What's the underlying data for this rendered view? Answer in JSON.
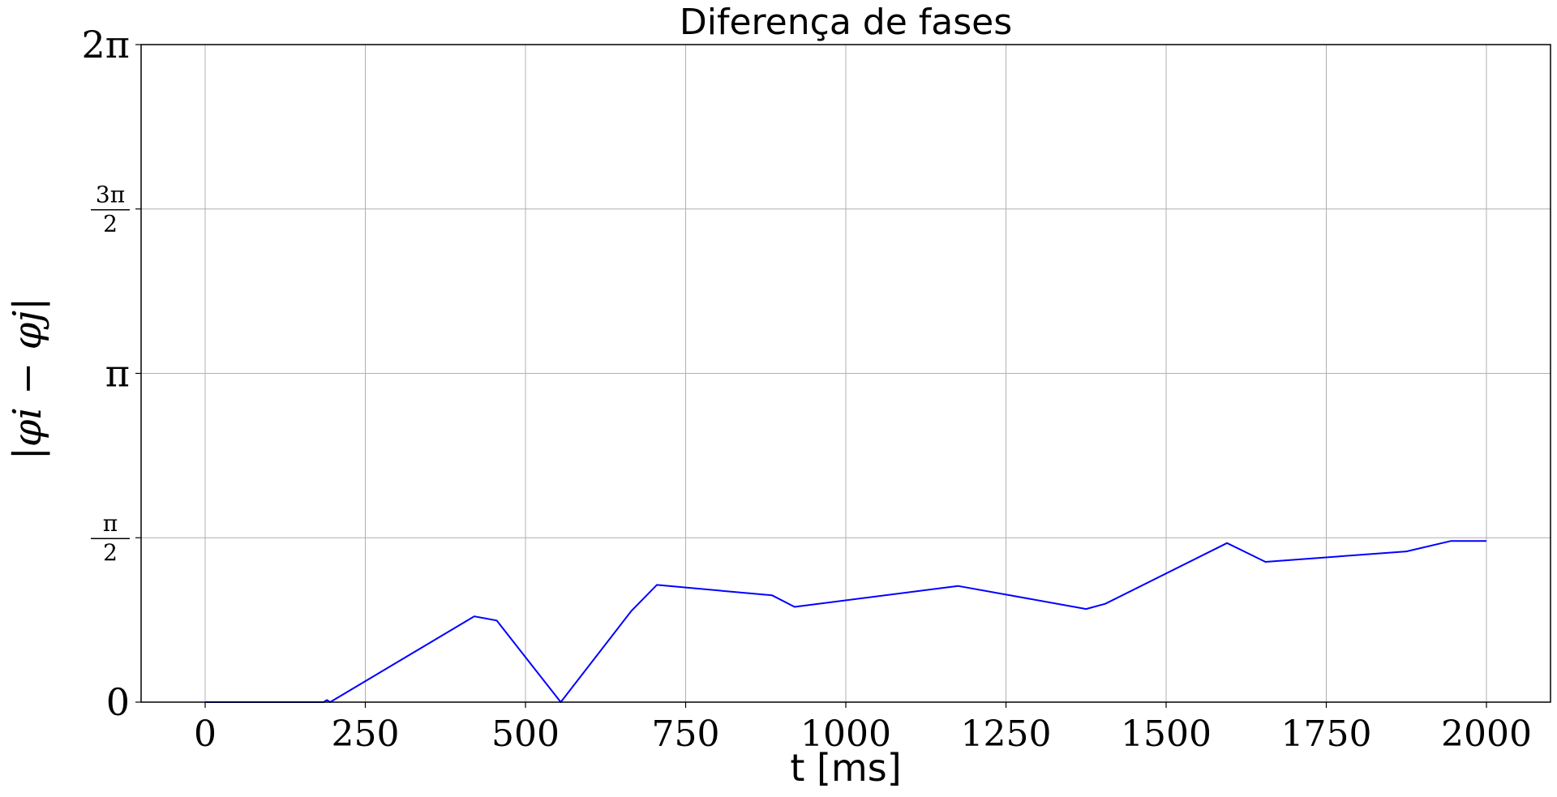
{
  "chart_data": {
    "type": "line",
    "title": "Diferença de fases",
    "xlabel": "t [ms]",
    "ylabel": "|φi − φj|",
    "xlim": [
      -100,
      2100
    ],
    "ylim": [
      0,
      6.283185307
    ],
    "grid": true,
    "line_color": "#0000ff",
    "x_ticks": [
      {
        "value": 0,
        "label": "0"
      },
      {
        "value": 250,
        "label": "250"
      },
      {
        "value": 500,
        "label": "500"
      },
      {
        "value": 750,
        "label": "750"
      },
      {
        "value": 1000,
        "label": "1000"
      },
      {
        "value": 1250,
        "label": "1250"
      },
      {
        "value": 1500,
        "label": "1500"
      },
      {
        "value": 1750,
        "label": "1750"
      },
      {
        "value": 2000,
        "label": "2000"
      }
    ],
    "y_ticks": [
      {
        "value": 0,
        "label": "0"
      },
      {
        "value": 1.5708,
        "label": "π/2"
      },
      {
        "value": 3.1416,
        "label": "π"
      },
      {
        "value": 4.7124,
        "label": "3π/2"
      },
      {
        "value": 6.2832,
        "label": "2π"
      }
    ],
    "series": [
      {
        "x": [
          0,
          185,
          190,
          195,
          420,
          455,
          555,
          665,
          705,
          885,
          920,
          1175,
          1375,
          1405,
          1595,
          1655,
          1875,
          1945,
          2000
        ],
        "y": [
          0.0,
          0.0,
          0.02,
          0.0,
          0.82,
          0.78,
          0.0,
          0.87,
          1.12,
          1.02,
          0.91,
          1.11,
          0.89,
          0.94,
          1.52,
          1.34,
          1.44,
          1.54,
          1.54
        ]
      }
    ]
  }
}
